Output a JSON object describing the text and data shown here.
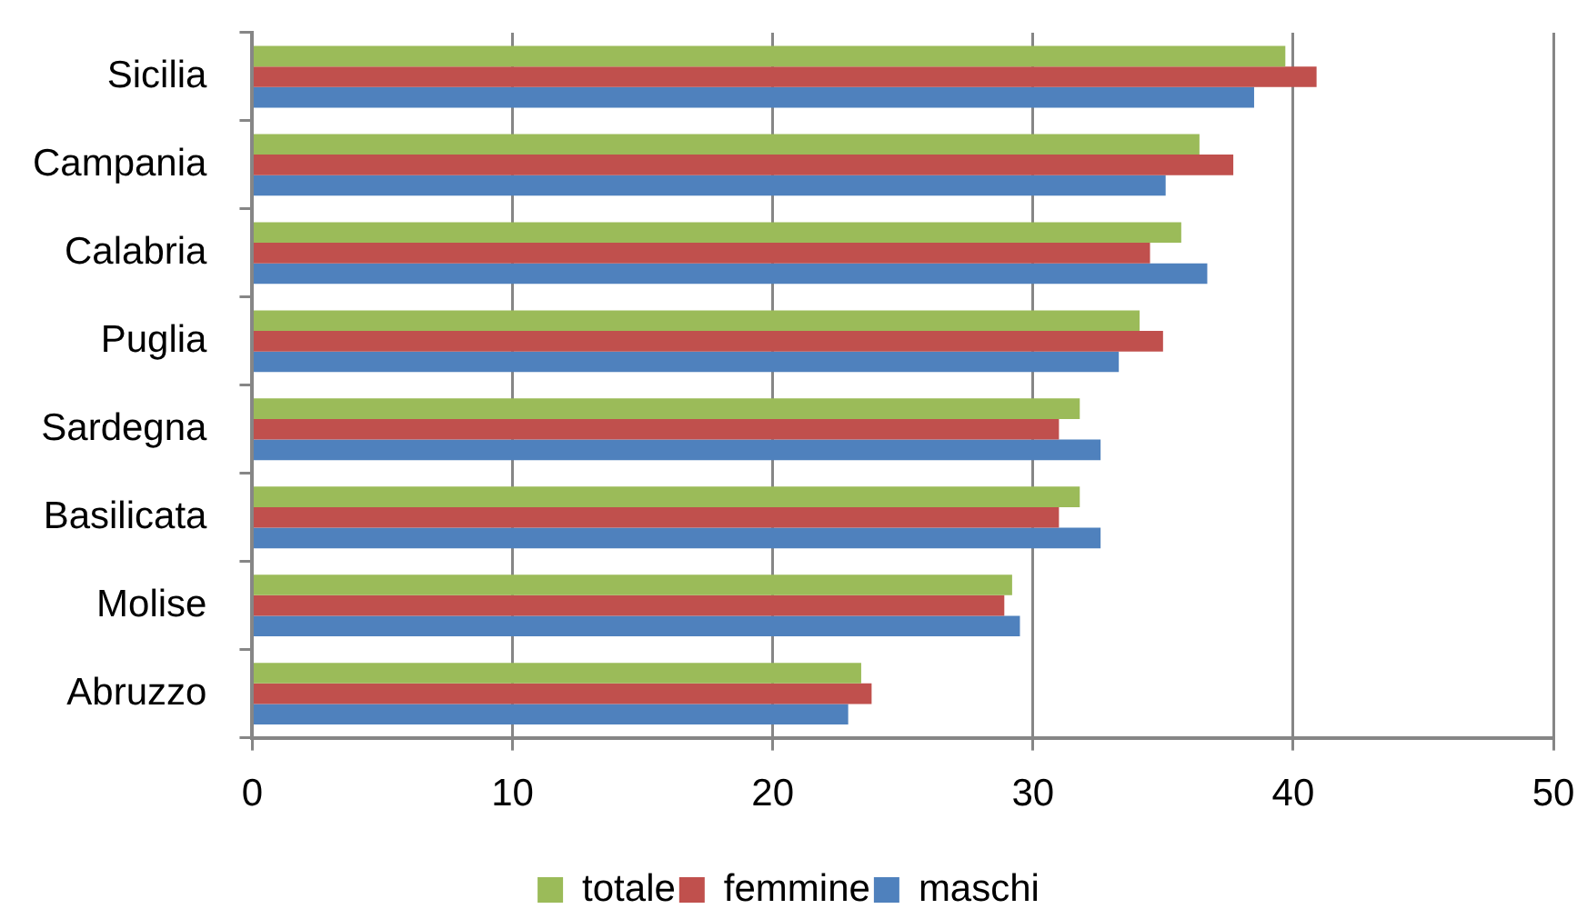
{
  "chart_data": {
    "type": "bar",
    "orientation": "horizontal",
    "categories": [
      "Sicilia",
      "Campania",
      "Calabria",
      "Puglia",
      "Sardegna",
      "Basilicata",
      "Molise",
      "Abruzzo"
    ],
    "series": [
      {
        "name": "totale",
        "color": "#9bbb59",
        "values": [
          39.7,
          36.4,
          35.7,
          34.1,
          31.8,
          31.8,
          29.2,
          23.4
        ]
      },
      {
        "name": "femmine",
        "color": "#c0504d",
        "values": [
          40.9,
          37.7,
          34.5,
          35.0,
          31.0,
          31.0,
          28.9,
          23.8
        ]
      },
      {
        "name": "maschi",
        "color": "#4f81bd",
        "values": [
          38.5,
          35.1,
          36.7,
          33.3,
          32.6,
          32.6,
          29.5,
          22.9
        ]
      }
    ],
    "xlim": [
      0,
      50
    ],
    "xticks": [
      0,
      10,
      20,
      30,
      40,
      50
    ],
    "grid": "x",
    "legend": "bottom"
  }
}
